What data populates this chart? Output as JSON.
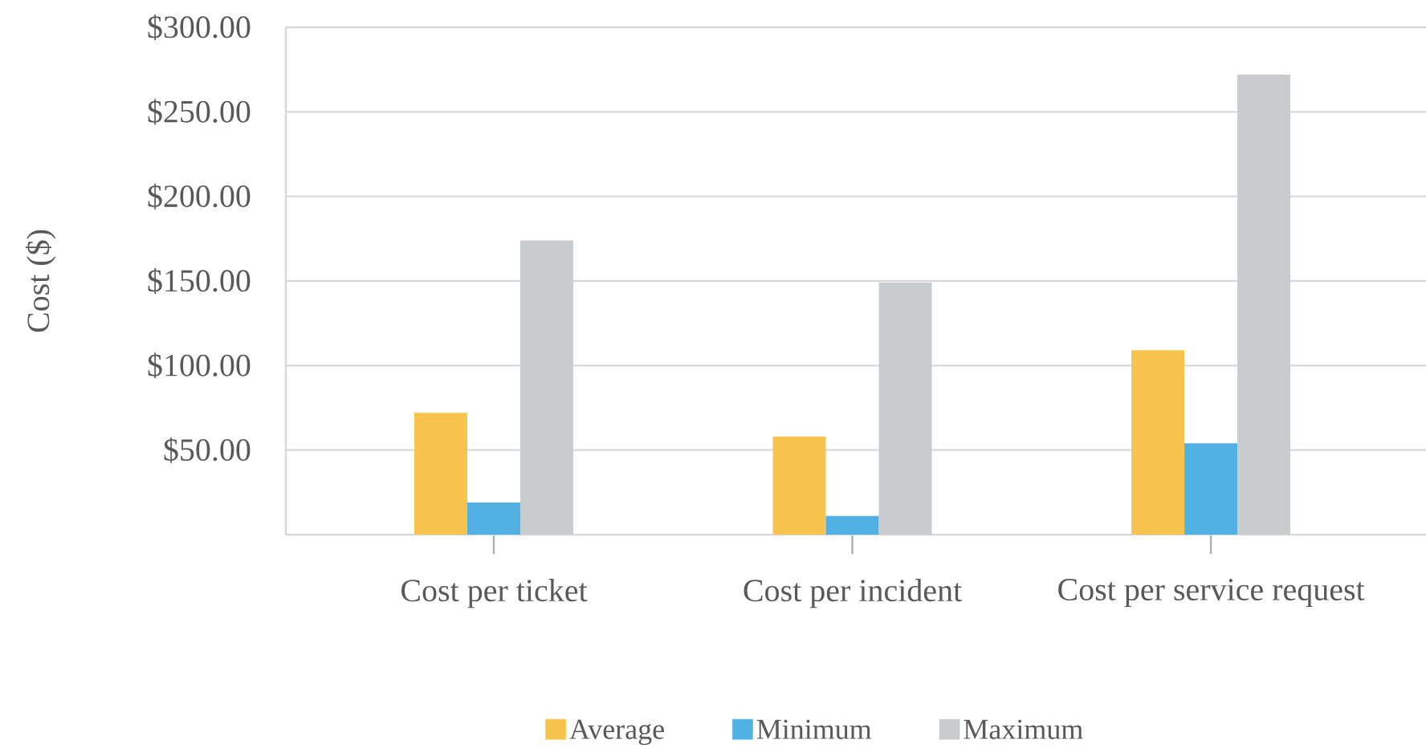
{
  "chart_data": {
    "type": "bar",
    "ylabel": "Cost ($)",
    "categories": [
      "Cost per ticket",
      "Cost per incident",
      "Cost per service request"
    ],
    "series": [
      {
        "name": "Average",
        "color": "#f7c44f",
        "values": [
          72,
          58,
          109
        ]
      },
      {
        "name": "Minimum",
        "color": "#52b1e3",
        "values": [
          19,
          11,
          54
        ]
      },
      {
        "name": "Maximum",
        "color": "#c9cccf",
        "values": [
          174,
          149,
          272
        ]
      }
    ],
    "ylim": [
      0,
      300
    ],
    "yticks": [
      {
        "value": 50,
        "label": "$50.00"
      },
      {
        "value": 100,
        "label": "$100.00"
      },
      {
        "value": 150,
        "label": "$150.00"
      },
      {
        "value": 200,
        "label": "$200.00"
      },
      {
        "value": 250,
        "label": "$250.00"
      },
      {
        "value": 300,
        "label": "$300.00"
      }
    ],
    "grid": "y",
    "legend": "bottom"
  }
}
